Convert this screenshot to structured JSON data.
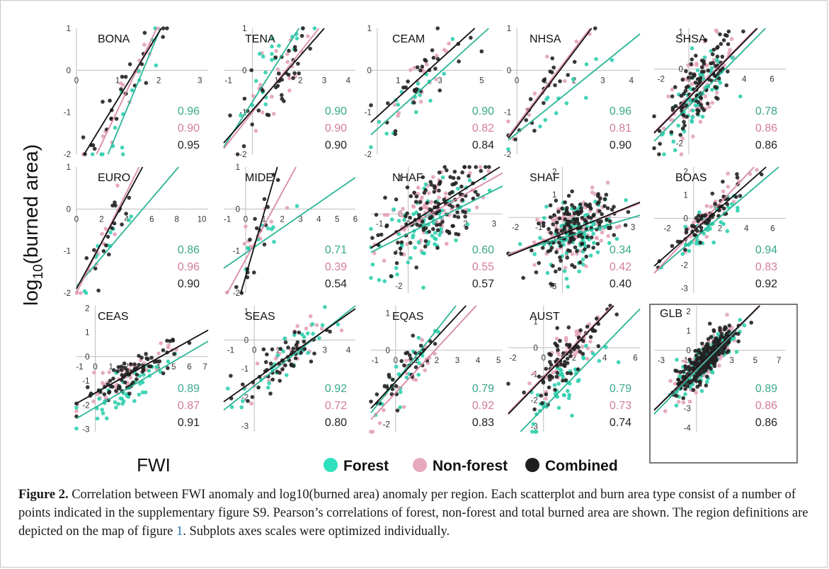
{
  "figure": {
    "ylabel": "log10(burned area)",
    "ylabel_main": "log",
    "ylabel_sub": "10",
    "ylabel_rest": "(burned area)",
    "xlabel": "FWI",
    "legend": [
      {
        "label": "Forest",
        "color": "#2fe0be"
      },
      {
        "label": "Non-forest",
        "color": "#e7a9bd"
      },
      {
        "label": "Combined",
        "color": "#1f1f1f"
      }
    ],
    "colors": {
      "forest": "#2fcfae",
      "nonforest": "#e3a3b8",
      "combined": "#222222",
      "forest_line": "#2ab597",
      "nonforest_line": "#d98aa6",
      "combined_line": "#111111",
      "forest_text": "#3aa88a",
      "nonforest_text": "#d37c9a",
      "combined_text": "#222222"
    }
  },
  "caption": {
    "label": "Figure 2.",
    "text_before_ref": "Correlation between FWI anomaly and log10(burned area) anomaly per region. Each scatterplot and burn area type consist of a number of points indicated in the supplementary figure S9. Pearson’s correlations of forest, non-forest and total burned area are shown. The region definitions are depicted on the map of figure",
    "ref": "1",
    "text_after_ref": ". Subplots axes scales were optimized individually."
  },
  "chart_data": [
    {
      "type": "scatter",
      "region": "BONA",
      "r": {
        "forest": 0.96,
        "nonforest": 0.9,
        "combined": 0.95
      },
      "xticks": [
        "0",
        "1",
        "2",
        "3"
      ],
      "yticks": [
        "1",
        "0",
        "-1",
        "-2"
      ],
      "xlim": [
        0,
        3.2
      ],
      "ylim": [
        -2,
        1
      ],
      "fits": {
        "forest": [
          -3.8,
          2.35
        ],
        "nonforest": [
          -3.0,
          2.05
        ],
        "combined": [
          -2.3,
          1.6
        ]
      },
      "n": 25,
      "spread": 0.35,
      "xmu": 1.3,
      "xsd": 0.55
    },
    {
      "type": "scatter",
      "region": "TENA",
      "r": {
        "forest": 0.9,
        "nonforest": 0.9,
        "combined": 0.9
      },
      "xticks": [
        "-1",
        "1",
        "2",
        "3",
        "4"
      ],
      "yticks": [
        "1",
        "0",
        "-1",
        "-2"
      ],
      "xlim": [
        -1.2,
        4.3
      ],
      "ylim": [
        -2,
        1
      ],
      "fits": {
        "forest": [
          -0.75,
          0.9
        ],
        "nonforest": [
          -1.0,
          0.72
        ],
        "combined": [
          -0.95,
          0.65
        ]
      },
      "n": 35,
      "spread": 0.45,
      "xmu": 0.9,
      "xsd": 0.8
    },
    {
      "type": "scatter",
      "region": "CEAM",
      "r": {
        "forest": 0.9,
        "nonforest": 0.82,
        "combined": 0.84
      },
      "xticks": [
        "1",
        "3",
        "5"
      ],
      "yticks": [
        "1",
        "0",
        "-1",
        "-2"
      ],
      "xlim": [
        -0.3,
        6
      ],
      "ylim": [
        -2,
        1
      ],
      "fits": {
        "forest": [
          -1.4,
          0.45
        ],
        "nonforest": [
          -1.1,
          0.45
        ],
        "combined": [
          -1.1,
          0.45
        ]
      },
      "n": 30,
      "spread": 0.35,
      "xmu": 2.0,
      "xsd": 1.1
    },
    {
      "type": "scatter",
      "region": "NHSA",
      "r": {
        "forest": 0.96,
        "nonforest": 0.81,
        "combined": 0.9
      },
      "xticks": [
        "0",
        "1",
        "2",
        "3",
        "4"
      ],
      "yticks": [
        "1",
        "0",
        "-1",
        "-2"
      ],
      "xlim": [
        -0.3,
        4.3
      ],
      "ylim": [
        -2,
        1
      ],
      "fits": {
        "forest": [
          -1.5,
          0.55
        ],
        "nonforest": [
          -1.3,
          0.9
        ],
        "combined": [
          -1.35,
          0.9
        ]
      },
      "n": 22,
      "spread": 0.3,
      "xmu": 1.1,
      "xsd": 0.8
    },
    {
      "type": "scatter",
      "region": "SHSA",
      "r": {
        "forest": 0.78,
        "nonforest": 0.86,
        "combined": 0.86
      },
      "xticks": [
        "-2",
        "0",
        "2",
        "4",
        "6"
      ],
      "yticks": [
        "1",
        "0",
        "-1",
        "-2"
      ],
      "xlim": [
        -2.5,
        7
      ],
      "ylim": [
        -2.3,
        1.1
      ],
      "fits": {
        "forest": [
          -1.0,
          0.38
        ],
        "nonforest": [
          -0.75,
          0.38
        ],
        "combined": [
          -0.78,
          0.38
        ]
      },
      "n": 110,
      "spread": 0.45,
      "xmu": 0.8,
      "xsd": 1.3
    },
    {
      "type": "scatter",
      "region": "EURO",
      "r": {
        "forest": 0.86,
        "nonforest": 0.96,
        "combined": 0.9
      },
      "xticks": [
        "0",
        "2",
        "4",
        "6",
        "8",
        "10"
      ],
      "yticks": [
        "1",
        "0",
        "-1",
        "-2"
      ],
      "xlim": [
        0,
        10.5
      ],
      "ylim": [
        -2,
        1
      ],
      "fits": {
        "forest": [
          -1.85,
          0.35
        ],
        "nonforest": [
          -2.0,
          0.6
        ],
        "combined": [
          -1.9,
          0.55
        ]
      },
      "n": 18,
      "spread": 0.25,
      "xmu": 2.5,
      "xsd": 1.3
    },
    {
      "type": "scatter",
      "region": "MIDE",
      "r": {
        "forest": 0.71,
        "nonforest": 0.39,
        "combined": 0.54
      },
      "xticks": [
        "-1",
        "0",
        "1",
        "2",
        "3",
        "4",
        "5",
        "6"
      ],
      "yticks": [
        "1",
        "0",
        "-1",
        "-2"
      ],
      "xlim": [
        -1.2,
        6
      ],
      "ylim": [
        -2,
        1
      ],
      "fits": {
        "forest": [
          -1.05,
          0.3
        ],
        "nonforest": [
          -1.2,
          0.8
        ],
        "combined": [
          -1.6,
          1.5
        ]
      },
      "n": 16,
      "spread": 0.35,
      "xmu": 0.6,
      "xsd": 0.7
    },
    {
      "type": "scatter",
      "region": "NHAF",
      "r": {
        "forest": 0.6,
        "nonforest": 0.55,
        "combined": 0.57
      },
      "xticks": [
        "-1",
        "0",
        "1",
        "2",
        "3"
      ],
      "yticks": [
        "1",
        "0",
        "-1",
        "-2"
      ],
      "xlim": [
        -1.3,
        3.3
      ],
      "ylim": [
        -2.2,
        1.3
      ],
      "fits": {
        "forest": [
          -0.55,
          0.4
        ],
        "nonforest": [
          -0.35,
          0.45
        ],
        "combined": [
          -0.3,
          0.5
        ]
      },
      "n": 130,
      "spread": 0.6,
      "xmu": 0.7,
      "xsd": 0.9
    },
    {
      "type": "scatter",
      "region": "SHAF",
      "r": {
        "forest": 0.34,
        "nonforest": 0.42,
        "combined": 0.4
      },
      "xticks": [
        "-2",
        "-1",
        "0",
        "1",
        "2",
        "3"
      ],
      "yticks": [
        "2",
        "1",
        "0",
        "-1",
        "-3"
      ],
      "xlim": [
        -2.3,
        3.3
      ],
      "ylim": [
        -3.3,
        2.2
      ],
      "fits": {
        "forest": [
          -0.9,
          0.3
        ],
        "nonforest": [
          -0.7,
          0.4
        ],
        "combined": [
          -0.72,
          0.42
        ]
      },
      "n": 160,
      "spread": 0.7,
      "xmu": 0.6,
      "xsd": 0.8
    },
    {
      "type": "scatter",
      "region": "BOAS",
      "r": {
        "forest": 0.94,
        "nonforest": 0.83,
        "combined": 0.92
      },
      "xticks": [
        "-2",
        "0",
        "2",
        "4",
        "6"
      ],
      "yticks": [
        "2",
        "1",
        "0",
        "-1",
        "-2",
        "-3"
      ],
      "xlim": [
        -3,
        7
      ],
      "ylim": [
        -3.2,
        2.2
      ],
      "fits": {
        "forest": [
          -0.9,
          0.48
        ],
        "nonforest": [
          -0.55,
          0.6
        ],
        "combined": [
          -0.55,
          0.5
        ]
      },
      "n": 60,
      "spread": 0.35,
      "xmu": 1.0,
      "xsd": 1.4
    },
    {
      "type": "scatter",
      "region": "CEAS",
      "r": {
        "forest": 0.89,
        "nonforest": 0.87,
        "combined": 0.91
      },
      "xticks": [
        "-1",
        "0",
        "1",
        "2",
        "3",
        "4",
        "5",
        "6",
        "7"
      ],
      "yticks": [
        "2",
        "1",
        "0",
        "-1",
        "-2",
        "-3"
      ],
      "xlim": [
        -1.2,
        7.2
      ],
      "ylim": [
        -3.1,
        2.1
      ],
      "fits": {
        "forest": [
          -2.1,
          0.38
        ],
        "nonforest": [
          -1.5,
          0.36
        ],
        "combined": [
          -1.5,
          0.36
        ]
      },
      "n": 80,
      "spread": 0.35,
      "xmu": 2.0,
      "xsd": 1.4
    },
    {
      "type": "scatter",
      "region": "SEAS",
      "r": {
        "forest": 0.92,
        "nonforest": 0.72,
        "combined": 0.8
      },
      "xticks": [
        "-1",
        "0",
        "1",
        "2",
        "3",
        "4"
      ],
      "yticks": [
        "1",
        "0",
        "-1",
        "-2",
        "-3"
      ],
      "xlim": [
        -1.3,
        4.3
      ],
      "ylim": [
        -3.2,
        1.2
      ],
      "fits": {
        "forest": [
          -1.6,
          0.65
        ],
        "nonforest": [
          -1.4,
          0.58
        ],
        "combined": [
          -1.4,
          0.58
        ]
      },
      "n": 55,
      "spread": 0.4,
      "xmu": 1.2,
      "xsd": 0.9
    },
    {
      "type": "scatter",
      "region": "EQAS",
      "r": {
        "forest": 0.79,
        "nonforest": 0.92,
        "combined": 0.83
      },
      "xticks": [
        "-1",
        "0",
        "1",
        "2",
        "3",
        "4",
        "5"
      ],
      "yticks": [
        "1",
        "0",
        "-1",
        "-2"
      ],
      "xlim": [
        -1.2,
        5.2
      ],
      "ylim": [
        -2.2,
        1.2
      ],
      "fits": {
        "forest": [
          -0.85,
          0.7
        ],
        "nonforest": [
          -1.15,
          0.6
        ],
        "combined": [
          -0.85,
          0.6
        ]
      },
      "n": 35,
      "spread": 0.35,
      "xmu": 0.5,
      "xsd": 0.8
    },
    {
      "type": "scatter",
      "region": "AUST",
      "r": {
        "forest": 0.79,
        "nonforest": 0.73,
        "combined": 0.74
      },
      "xticks": [
        "-2",
        "0",
        "2",
        "4",
        "6"
      ],
      "yticks": [
        "1",
        "0",
        "-1",
        "-2",
        "-3"
      ],
      "xlim": [
        -2.3,
        6.3
      ],
      "ylim": [
        -3.2,
        1.6
      ],
      "fits": {
        "forest": [
          -2.3,
          0.6
        ],
        "nonforest": [
          -1.1,
          0.6
        ],
        "combined": [
          -1.15,
          0.6
        ]
      },
      "n": 80,
      "spread": 0.55,
      "xmu": 1.5,
      "xsd": 1.2
    },
    {
      "type": "scatter",
      "region": "GLB",
      "boxed": true,
      "r": {
        "forest": 0.89,
        "nonforest": 0.86,
        "combined": 0.86
      },
      "xticks": [
        "-3",
        "-1",
        "1",
        "3",
        "5",
        "7"
      ],
      "yticks": [
        "2",
        "1",
        "0",
        "-1",
        "-3",
        "-4"
      ],
      "xlim": [
        -3.6,
        7.6
      ],
      "ylim": [
        -4.2,
        2.3
      ],
      "fits": {
        "forest": [
          -1.05,
          0.62
        ],
        "nonforest": [
          -0.95,
          0.6
        ],
        "combined": [
          -0.92,
          0.6
        ]
      },
      "n": 260,
      "spread": 0.45,
      "xmu": 0.7,
      "xsd": 1.2
    }
  ]
}
